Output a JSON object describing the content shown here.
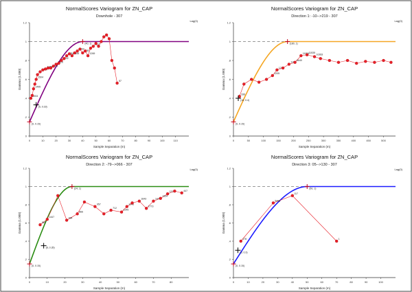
{
  "chart_data": [
    {
      "type": "line",
      "title": "NormalScores  Variogram for ZN_CAP",
      "subtitle": "Downhole - 307",
      "xlabel": "Sample Separation (m)",
      "ylabel": "Gamma (1.000)",
      "legend": "Lag(0)",
      "xlim": [
        0,
        120
      ],
      "ylim": [
        0,
        1.2
      ],
      "xticks": [
        0,
        10,
        20,
        30,
        40,
        50,
        60,
        70,
        80,
        90,
        100,
        110
      ],
      "xtick_labels": [
        "0",
        "10",
        "20",
        "30",
        "40",
        "50",
        "60",
        "70",
        "80",
        "90",
        "100",
        "110"
      ],
      "yticks": [
        0,
        0.2,
        0.4,
        0.6,
        0.8,
        1.0,
        1.2
      ],
      "ytick_labels": [
        "0",
        ".2",
        ".4",
        ".6",
        ".8",
        "1",
        "1.2"
      ],
      "sill": 1.0,
      "model_color": "#800080",
      "model": {
        "nugget": 0.15,
        "range": 40,
        "sill": 1.0
      },
      "markers": [
        {
          "x": 0,
          "y": 0.15,
          "label": "(0, 0.15)"
        },
        {
          "x": 5,
          "y": 0.33,
          "label": "(5, 0.33)"
        },
        {
          "x": 40,
          "y": 1.0,
          "label": "(40, 1)"
        }
      ],
      "experimental": {
        "x": [
          1,
          2,
          3,
          4,
          5,
          6,
          8,
          10,
          12,
          14,
          16,
          18,
          20,
          22,
          24,
          26,
          28,
          30,
          32,
          34,
          36,
          38,
          40,
          42,
          44,
          46,
          48,
          50,
          52,
          54,
          56,
          58,
          60,
          62,
          64,
          66
        ],
        "y": [
          0.4,
          0.43,
          0.5,
          0.55,
          0.6,
          0.65,
          0.68,
          0.7,
          0.71,
          0.72,
          0.72,
          0.74,
          0.76,
          0.77,
          0.8,
          0.82,
          0.85,
          0.87,
          0.85,
          0.88,
          0.9,
          0.92,
          0.88,
          0.9,
          0.85,
          0.93,
          0.95,
          0.98,
          0.95,
          1.0,
          1.05,
          1.07,
          1.03,
          0.8,
          0.72,
          0.56
        ],
        "pair_counts": [
          "1504",
          "",
          "1495",
          "",
          "1504",
          "",
          "1464",
          "",
          "1458",
          "",
          "1464",
          "",
          "1426",
          "",
          "1402",
          "",
          "1384",
          "",
          "1358",
          "",
          "1332",
          "",
          "1287",
          "",
          "1269",
          "",
          "1217",
          "",
          "",
          "",
          "",
          "",
          "",
          "",
          "",
          "57"
        ]
      }
    },
    {
      "type": "line",
      "title": "NormalScores  Variogram for ZN_CAP",
      "subtitle": "Direction 1: -10-->219 - 307",
      "xlabel": "Sample Separation (m)",
      "ylabel": "Gamma (1.000)",
      "legend": "Lag(0)",
      "xlim": [
        0,
        540
      ],
      "ylim": [
        0,
        1.2
      ],
      "xticks": [
        0,
        50,
        100,
        150,
        200,
        250,
        300,
        350,
        400,
        450,
        500
      ],
      "xtick_labels": [
        "0",
        "50",
        "100",
        "150",
        "200",
        "250",
        "300",
        "350",
        "400",
        "450",
        "500"
      ],
      "yticks": [
        0,
        0.2,
        0.4,
        0.6,
        0.8,
        1.0,
        1.2
      ],
      "ytick_labels": [
        "0",
        ".2",
        ".4",
        ".6",
        ".8",
        "1",
        "1.2"
      ],
      "sill": 1.0,
      "model_color": "#f5a623",
      "model": {
        "nugget": 0.15,
        "range": 180,
        "sill": 1.0
      },
      "markers": [
        {
          "x": 0,
          "y": 0.15,
          "label": "(0, 0.15)"
        },
        {
          "x": 16,
          "y": 0.4,
          "label": "(16, 0.4)"
        },
        {
          "x": 180,
          "y": 1.0,
          "label": "(180, 1)"
        }
      ],
      "experimental": {
        "x": [
          20,
          35,
          60,
          85,
          110,
          130,
          145,
          165,
          185,
          205,
          225,
          245,
          270,
          290,
          320,
          350,
          380,
          410,
          440,
          470,
          500,
          525
        ],
        "y": [
          0.42,
          0.55,
          0.6,
          0.57,
          0.6,
          0.64,
          0.7,
          0.72,
          0.76,
          0.78,
          0.85,
          0.86,
          0.84,
          0.82,
          0.8,
          0.78,
          0.8,
          0.77,
          0.79,
          0.78,
          0.8,
          0.78
        ],
        "pair_counts": [
          "336",
          "",
          "",
          "",
          "",
          "1205",
          "1201",
          "",
          "1158",
          "6640",
          "11684",
          "11535",
          "10283",
          "",
          "",
          "",
          "",
          "",
          "",
          "",
          "",
          ""
        ]
      }
    },
    {
      "type": "line",
      "title": "NormalScores  Variogram for ZN_CAP",
      "subtitle": "Direction 2: -79-->066 - 307",
      "xlabel": "Sample Separation (m)",
      "ylabel": "Gamma (1.000)",
      "legend": "Lag(0)",
      "xlim": [
        0,
        90
      ],
      "ylim": [
        0,
        1.2
      ],
      "xticks": [
        0,
        10,
        20,
        30,
        40,
        50,
        60,
        70,
        80
      ],
      "xtick_labels": [
        "0",
        "10",
        "20",
        "30",
        "40",
        "50",
        "60",
        "70",
        "80"
      ],
      "yticks": [
        0,
        0.2,
        0.4,
        0.6,
        0.8,
        1.0,
        1.2
      ],
      "ytick_labels": [
        "0",
        ".2",
        ".4",
        ".6",
        ".8",
        "1",
        "1.2"
      ],
      "sill": 1.0,
      "model_color": "#2a8c12",
      "model": {
        "nugget": 0.15,
        "range": 24,
        "sill": 1.0
      },
      "markers": [
        {
          "x": 0,
          "y": 0.15,
          "label": "(0, 0.15)"
        },
        {
          "x": 8,
          "y": 0.35,
          "label": "(8, 0.35)"
        },
        {
          "x": 24,
          "y": 1.0,
          "label": "(24, 1)"
        }
      ],
      "experimental": {
        "x": [
          6,
          10,
          16,
          21,
          27,
          31,
          37,
          42,
          46,
          52,
          55,
          58,
          62,
          66,
          70,
          74,
          78,
          82,
          86
        ],
        "y": [
          0.58,
          0.64,
          0.9,
          0.63,
          0.7,
          0.83,
          0.78,
          0.7,
          0.74,
          0.72,
          0.78,
          0.82,
          0.84,
          0.76,
          0.84,
          0.87,
          0.92,
          0.95,
          0.93
        ],
        "pair_counts": [
          "583",
          "1447",
          "",
          "984",
          "866",
          "",
          "957",
          "",
          "712",
          "1245",
          "1245",
          "",
          "1643",
          "1773",
          "1477",
          "1334",
          "1373",
          "",
          "447"
        ]
      }
    },
    {
      "type": "line",
      "title": "NormalScores  Variogram for ZN_CAP",
      "subtitle": "Direction 3: 05-->130 - 307",
      "xlabel": "Sample Separation (m)",
      "ylabel": "Gamma (1.000)",
      "legend": "Lag(0)",
      "xlim": [
        0,
        110
      ],
      "ylim": [
        0,
        1.2
      ],
      "xticks": [
        0,
        10,
        20,
        30,
        40,
        50,
        60,
        70,
        80,
        90,
        100
      ],
      "xtick_labels": [
        "0",
        "10",
        "20",
        "30",
        "40",
        "50",
        "60",
        "70",
        "80",
        "90",
        "100"
      ],
      "yticks": [
        0,
        0.2,
        0.4,
        0.6,
        0.8,
        1.0,
        1.2
      ],
      "ytick_labels": [
        "0",
        ".2",
        ".4",
        ".6",
        ".8",
        "1",
        "1.2"
      ],
      "sill": 1.0,
      "model_color": "#1a1aff",
      "model": {
        "nugget": 0.15,
        "range": 50,
        "sill": 1.0
      },
      "markers": [
        {
          "x": 0,
          "y": 0.15,
          "label": "(0, 0.15)"
        },
        {
          "x": 3,
          "y": 0.3,
          "label": "(3, 0.3)"
        },
        {
          "x": 50,
          "y": 1.0,
          "label": "(50, 1)"
        }
      ],
      "experimental": {
        "x": [
          5,
          27,
          40,
          70
        ],
        "y": [
          0.4,
          0.82,
          0.9,
          0.4
        ],
        "pair_counts": [
          "178",
          "5466",
          "117",
          "1"
        ]
      }
    }
  ]
}
